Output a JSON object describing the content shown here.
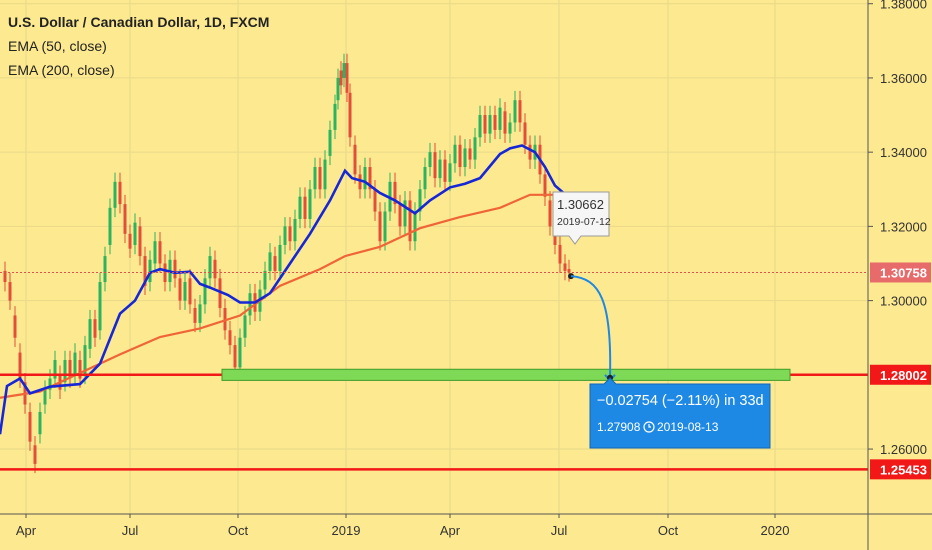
{
  "chart_data": {
    "type": "candlestick",
    "title": "U.S. Dollar / Canadian Dollar, 1D, FXCM",
    "indicators": [
      "EMA (50, close)",
      "EMA (200, close)"
    ],
    "ylim": [
      1.2425,
      1.381
    ],
    "y_ticks": [
      "1.38000",
      "1.36000",
      "1.34000",
      "1.32000",
      "1.30000",
      "1.26000"
    ],
    "x_ticks": [
      "Apr",
      "Jul",
      "Oct",
      "2019",
      "Apr",
      "Jul",
      "Oct",
      "2020"
    ],
    "price_lines": [
      {
        "label": "1.30758",
        "value": 1.30758,
        "color": "#e05050",
        "style": "dotted"
      },
      {
        "label": "1.28002",
        "value": 1.28002,
        "color": "#f21818",
        "style": "solid"
      },
      {
        "label": "1.25453",
        "value": 1.25453,
        "color": "#f21818",
        "style": "solid"
      }
    ],
    "ema50": [
      [
        0,
        1.264
      ],
      [
        7,
        1.277
      ],
      [
        20,
        1.279
      ],
      [
        30,
        1.275
      ],
      [
        50,
        1.2768
      ],
      [
        80,
        1.2775
      ],
      [
        100,
        1.283
      ],
      [
        120,
        1.2965
      ],
      [
        135,
        1.3
      ],
      [
        150,
        1.3075
      ],
      [
        160,
        1.3085
      ],
      [
        175,
        1.3075
      ],
      [
        190,
        1.3078
      ],
      [
        200,
        1.3045
      ],
      [
        210,
        1.3035
      ],
      [
        228,
        1.3015
      ],
      [
        240,
        1.2995
      ],
      [
        255,
        1.2995
      ],
      [
        270,
        1.302
      ],
      [
        290,
        1.31
      ],
      [
        310,
        1.318
      ],
      [
        330,
        1.327
      ],
      [
        345,
        1.335
      ],
      [
        352,
        1.333
      ],
      [
        365,
        1.332
      ],
      [
        380,
        1.329
      ],
      [
        395,
        1.327
      ],
      [
        415,
        1.3235
      ],
      [
        430,
        1.327
      ],
      [
        450,
        1.3305
      ],
      [
        465,
        1.3315
      ],
      [
        480,
        1.333
      ],
      [
        500,
        1.3395
      ],
      [
        510,
        1.341
      ],
      [
        522,
        1.3418
      ],
      [
        535,
        1.34
      ],
      [
        545,
        1.336
      ],
      [
        555,
        1.331
      ],
      [
        568,
        1.328
      ]
    ],
    "ema200": [
      [
        0,
        1.2738
      ],
      [
        40,
        1.2755
      ],
      [
        80,
        1.2805
      ],
      [
        120,
        1.2855
      ],
      [
        160,
        1.2902
      ],
      [
        200,
        1.2925
      ],
      [
        240,
        1.296
      ],
      [
        280,
        1.304
      ],
      [
        320,
        1.3085
      ],
      [
        345,
        1.312
      ],
      [
        380,
        1.3145
      ],
      [
        420,
        1.3195
      ],
      [
        460,
        1.3225
      ],
      [
        500,
        1.325
      ],
      [
        530,
        1.3285
      ],
      [
        555,
        1.3285
      ],
      [
        565,
        1.327
      ]
    ],
    "candles": [
      [
        5,
        1.308,
        1.305
      ],
      [
        10,
        1.305,
        1.3
      ],
      [
        15,
        1.296,
        1.29
      ],
      [
        20,
        1.286,
        1.279
      ],
      [
        25,
        1.278,
        1.272
      ],
      [
        30,
        1.27,
        1.262
      ],
      [
        35,
        1.261,
        1.256
      ],
      [
        40,
        1.264,
        1.27
      ],
      [
        45,
        1.272,
        1.276
      ],
      [
        50,
        1.276,
        1.279
      ],
      [
        55,
        1.279,
        1.284
      ],
      [
        60,
        1.28,
        1.276
      ],
      [
        65,
        1.278,
        1.284
      ],
      [
        70,
        1.284,
        1.279
      ],
      [
        75,
        1.28,
        1.286
      ],
      [
        80,
        1.284,
        1.279
      ],
      [
        85,
        1.28,
        1.288
      ],
      [
        90,
        1.287,
        1.295
      ],
      [
        95,
        1.295,
        1.29
      ],
      [
        100,
        1.292,
        1.305
      ],
      [
        105,
        1.305,
        1.312
      ],
      [
        110,
        1.315,
        1.325
      ],
      [
        115,
        1.325,
        1.332
      ],
      [
        120,
        1.332,
        1.326
      ],
      [
        125,
        1.326,
        1.318
      ],
      [
        130,
        1.318,
        1.314
      ],
      [
        135,
        1.315,
        1.321
      ],
      [
        140,
        1.32,
        1.312
      ],
      [
        145,
        1.312,
        1.304
      ],
      [
        150,
        1.305,
        1.311
      ],
      [
        155,
        1.31,
        1.316
      ],
      [
        160,
        1.316,
        1.31
      ],
      [
        165,
        1.31,
        1.305
      ],
      [
        170,
        1.305,
        1.311
      ],
      [
        175,
        1.311,
        1.306
      ],
      [
        180,
        1.306,
        1.3
      ],
      [
        185,
        1.3,
        1.305
      ],
      [
        190,
        1.306,
        1.299
      ],
      [
        195,
        1.298,
        1.294
      ],
      [
        200,
        1.294,
        1.299
      ],
      [
        205,
        1.299,
        1.306
      ],
      [
        210,
        1.306,
        1.312
      ],
      [
        215,
        1.311,
        1.306
      ],
      [
        220,
        1.306,
        1.298
      ],
      [
        225,
        1.298,
        1.292
      ],
      [
        230,
        1.292,
        1.288
      ],
      [
        235,
        1.288,
        1.282
      ],
      [
        240,
        1.282,
        1.29
      ],
      [
        245,
        1.29,
        1.296
      ],
      [
        250,
        1.296,
        1.302
      ],
      [
        255,
        1.302,
        1.297
      ],
      [
        260,
        1.297,
        1.303
      ],
      [
        265,
        1.303,
        1.308
      ],
      [
        270,
        1.308,
        1.313
      ],
      [
        275,
        1.312,
        1.308
      ],
      [
        280,
        1.308,
        1.315
      ],
      [
        285,
        1.315,
        1.32
      ],
      [
        290,
        1.32,
        1.316
      ],
      [
        295,
        1.316,
        1.322
      ],
      [
        300,
        1.322,
        1.328
      ],
      [
        305,
        1.328,
        1.322
      ],
      [
        310,
        1.322,
        1.33
      ],
      [
        315,
        1.33,
        1.336
      ],
      [
        320,
        1.336,
        1.33
      ],
      [
        325,
        1.33,
        1.338
      ],
      [
        330,
        1.339,
        1.346
      ],
      [
        335,
        1.346,
        1.353
      ],
      [
        338,
        1.354,
        1.36
      ],
      [
        341,
        1.362,
        1.358
      ],
      [
        344,
        1.36,
        1.364
      ],
      [
        347,
        1.364,
        1.356
      ],
      [
        350,
        1.356,
        1.344
      ],
      [
        355,
        1.342,
        1.334
      ],
      [
        360,
        1.334,
        1.33
      ],
      [
        365,
        1.33,
        1.336
      ],
      [
        370,
        1.336,
        1.33
      ],
      [
        375,
        1.33,
        1.324
      ],
      [
        380,
        1.324,
        1.316
      ],
      [
        385,
        1.316,
        1.324
      ],
      [
        390,
        1.324,
        1.332
      ],
      [
        395,
        1.332,
        1.326
      ],
      [
        400,
        1.326,
        1.32
      ],
      [
        405,
        1.32,
        1.327
      ],
      [
        410,
        1.327,
        1.316
      ],
      [
        415,
        1.316,
        1.324
      ],
      [
        420,
        1.324,
        1.33
      ],
      [
        425,
        1.33,
        1.336
      ],
      [
        430,
        1.336,
        1.34
      ],
      [
        435,
        1.34,
        1.333
      ],
      [
        440,
        1.333,
        1.338
      ],
      [
        445,
        1.338,
        1.332
      ],
      [
        450,
        1.332,
        1.337
      ],
      [
        455,
        1.337,
        1.342
      ],
      [
        460,
        1.342,
        1.336
      ],
      [
        465,
        1.336,
        1.341
      ],
      [
        470,
        1.341,
        1.338
      ],
      [
        475,
        1.338,
        1.344
      ],
      [
        480,
        1.344,
        1.35
      ],
      [
        485,
        1.35,
        1.345
      ],
      [
        490,
        1.345,
        1.35
      ],
      [
        495,
        1.35,
        1.346
      ],
      [
        500,
        1.346,
        1.352
      ],
      [
        505,
        1.351,
        1.345
      ],
      [
        510,
        1.345,
        1.348
      ],
      [
        515,
        1.348,
        1.354
      ],
      [
        520,
        1.354,
        1.348
      ],
      [
        525,
        1.348,
        1.342
      ],
      [
        530,
        1.342,
        1.338
      ],
      [
        535,
        1.338,
        1.342
      ],
      [
        540,
        1.342,
        1.334
      ],
      [
        545,
        1.334,
        1.328
      ],
      [
        550,
        1.327,
        1.32
      ],
      [
        555,
        1.32,
        1.315
      ],
      [
        560,
        1.315,
        1.31
      ],
      [
        565,
        1.31,
        1.308
      ],
      [
        569,
        1.3085,
        1.3076
      ]
    ],
    "highlight_zone": {
      "y_top": 1.2815,
      "y_bottom": 1.2785,
      "x_start": 222,
      "x_end": 790
    },
    "tooltip": {
      "value": "1.30662",
      "date": "2019-07-12"
    },
    "measure": {
      "line1": "−0.02754 (−2.11%) in 33d",
      "value": "1.27908",
      "date": "2019-08-13"
    },
    "colors": {
      "background": "#fde98f",
      "ema50": "#1527d6",
      "ema200": "#f06538",
      "candle_up": "#2bb35f",
      "candle_down": "#e24e3a",
      "support": "#f21818",
      "zone": "#7ed957",
      "measure_box": "#1e88e5"
    }
  }
}
